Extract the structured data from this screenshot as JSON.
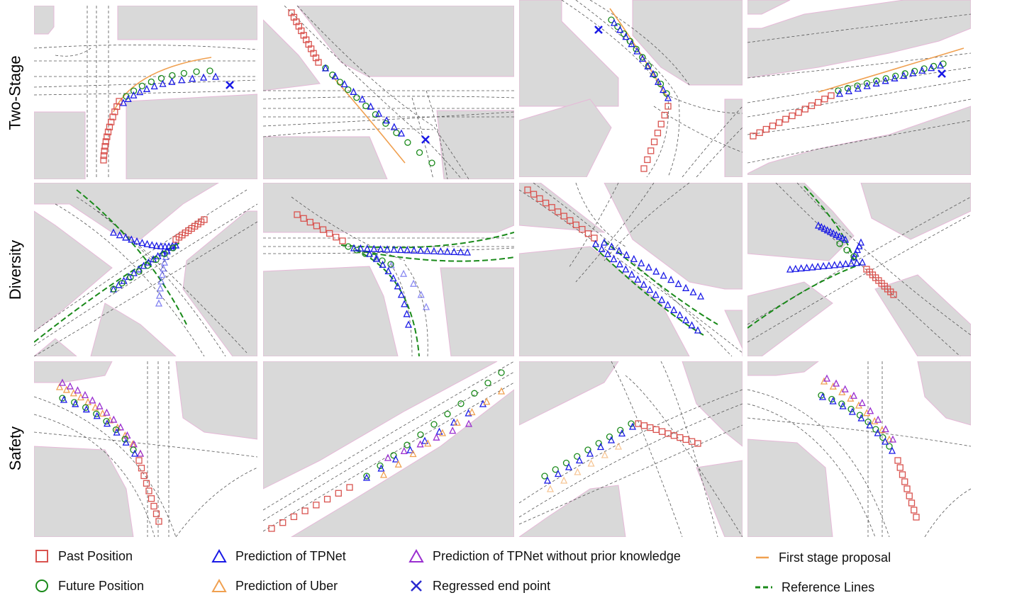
{
  "rows": [
    {
      "label": "Two-Stage"
    },
    {
      "label": "Diversity"
    },
    {
      "label": "Safety"
    }
  ],
  "legend": [
    {
      "label": "Past Position",
      "marker": "square",
      "color": "#d9534f"
    },
    {
      "label": "Prediction of TPNet",
      "marker": "triangle",
      "color": "#1a1ae6"
    },
    {
      "label": "Prediction of TPNet without prior knowledge",
      "marker": "triangle",
      "color": "#9a2fd0"
    },
    {
      "label": "First stage proposal",
      "marker": "line",
      "color": "#f0a050"
    },
    {
      "label": "Future Position",
      "marker": "circle",
      "color": "#1a8a1a"
    },
    {
      "label": "Prediction of Uber",
      "marker": "triangle",
      "color": "#f0a050"
    },
    {
      "label": "Regressed end point",
      "marker": "cross",
      "color": "#2a2ad0"
    },
    {
      "label": "Reference Lines",
      "marker": "dashed",
      "color": "#1a8a1a"
    }
  ],
  "colors": {
    "block": "#d9d9d9",
    "block_edge": "#e6b8d8",
    "lane": "#555555",
    "past": "#d9534f",
    "future": "#1a8a1a",
    "tpnet": "#1a1ae6",
    "noprior": "#9a2fd0",
    "uber": "#f0a050",
    "proposal": "#f0a050",
    "reference": "#1a8a1a"
  }
}
